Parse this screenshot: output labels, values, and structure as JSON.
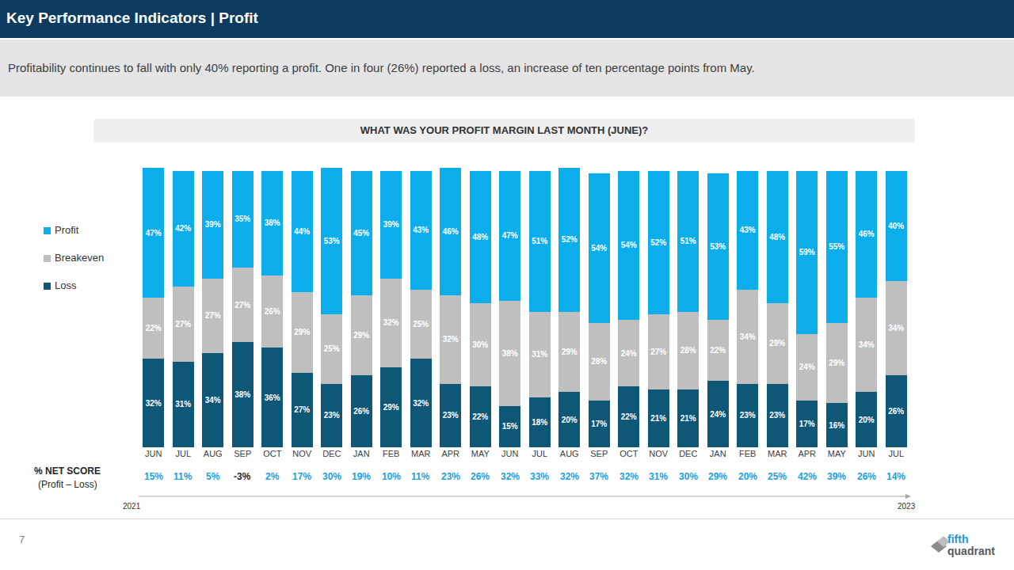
{
  "header": {
    "title": "Key Performance Indicators | Profit",
    "subtitle": "Profitability continues to fall with only 40% reporting a profit. One in four (26%) reported a loss, an increase of ten percentage points from May."
  },
  "chart_data": {
    "type": "bar",
    "title": "WHAT WAS YOUR PROFIT MARGIN LAST MONTH (JUNE)?",
    "stacked": true,
    "data_labels": true,
    "tick_labels": "x",
    "legend": "left",
    "categories": [
      "JUN",
      "JUL",
      "AUG",
      "SEP",
      "OCT",
      "NOV",
      "DEC",
      "JAN",
      "FEB",
      "MAR",
      "APR",
      "MAY",
      "JUN",
      "JUL",
      "AUG",
      "SEP",
      "OCT",
      "NOV",
      "DEC",
      "JAN",
      "FEB",
      "MAR",
      "APR",
      "MAY",
      "JUN",
      "JUL"
    ],
    "series": [
      {
        "name": "Profit",
        "color": "#0baeea",
        "values": [
          47,
          42,
          39,
          35,
          38,
          44,
          53,
          45,
          39,
          43,
          46,
          48,
          47,
          51,
          52,
          54,
          54,
          52,
          51,
          53,
          43,
          48,
          59,
          55,
          46,
          40
        ],
        "value_labels": [
          "47%",
          "42%",
          "39%",
          "35%",
          "38%",
          "44%",
          "53%",
          "45%",
          "39%",
          "43%",
          "46%",
          "48%",
          "47%",
          "51%",
          "52%",
          "54%",
          "54%",
          "52%",
          "51%",
          "53%",
          "43%",
          "48%",
          "59%",
          "55%",
          "46%",
          "40%"
        ]
      },
      {
        "name": "Breakeven",
        "color": "#bfbfbf",
        "values": [
          22,
          27,
          27,
          27,
          26,
          29,
          25,
          29,
          32,
          25,
          32,
          30,
          38,
          31,
          29,
          28,
          24,
          27,
          28,
          22,
          34,
          29,
          24,
          29,
          34,
          34
        ],
        "value_labels": [
          "22%",
          "27%",
          "27%",
          "27%",
          "26%",
          "29%",
          "25%",
          "29%",
          "32%",
          "25%",
          "32%",
          "30%",
          "38%",
          "31%",
          "29%",
          "28%",
          "24%",
          "27%",
          "28%",
          "22%",
          "34%",
          "29%",
          "24%",
          "29%",
          "34%",
          "34%"
        ]
      },
      {
        "name": "Loss",
        "color": "#0e5777",
        "values": [
          32,
          31,
          34,
          38,
          36,
          27,
          23,
          26,
          29,
          32,
          23,
          22,
          15,
          18,
          20,
          17,
          22,
          21,
          21,
          24,
          23,
          23,
          17,
          16,
          20,
          26
        ],
        "value_labels": [
          "32%",
          "31%",
          "34%",
          "38%",
          "36%",
          "27%",
          "23%",
          "26%",
          "29%",
          "32%",
          "23%",
          "22%",
          "15%",
          "18%",
          "20%",
          "17%",
          "22%",
          "21%",
          "21%",
          "24%",
          "23%",
          "23%",
          "17%",
          "16%",
          "20%",
          "26%"
        ]
      }
    ],
    "net_score": {
      "label": "% NET SCORE",
      "sublabel": "(Profit – Loss)",
      "values": [
        15,
        11,
        5,
        -3,
        2,
        17,
        30,
        19,
        10,
        11,
        23,
        26,
        32,
        33,
        32,
        37,
        32,
        31,
        30,
        29,
        20,
        25,
        42,
        39,
        26,
        14
      ],
      "value_labels": [
        "15%",
        "11%",
        "5%",
        "-3%",
        "2%",
        "17%",
        "30%",
        "19%",
        "10%",
        "11%",
        "23%",
        "26%",
        "32%",
        "33%",
        "32%",
        "37%",
        "32%",
        "31%",
        "30%",
        "29%",
        "20%",
        "25%",
        "42%",
        "39%",
        "26%",
        "14%"
      ],
      "colors": [
        "#1ba1db",
        "#1ba1db",
        "#1ba1db",
        "#262626",
        "#1ba1db",
        "#1ba1db",
        "#1ba1db",
        "#1ba1db",
        "#1ba1db",
        "#1ba1db",
        "#1ba1db",
        "#1ba1db",
        "#1ba1db",
        "#1ba1db",
        "#1ba1db",
        "#1ba1db",
        "#1ba1db",
        "#1ba1db",
        "#1ba1db",
        "#1ba1db",
        "#1ba1db",
        "#1ba1db",
        "#1ba1db",
        "#1ba1db",
        "#1ba1db",
        "#1ba1db"
      ]
    },
    "period": {
      "start": "2021",
      "end": "2023"
    }
  },
  "footer": {
    "page_number": "7",
    "logo": [
      "fifth",
      "quadrant"
    ]
  }
}
